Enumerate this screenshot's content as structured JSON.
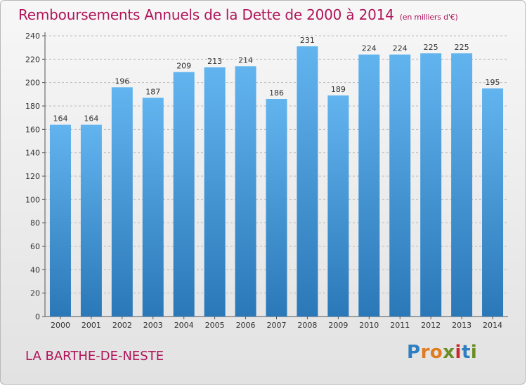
{
  "chart_data": {
    "type": "bar",
    "title": "Remboursements Annuels de la Dette de 2000 à 2014",
    "subtitle": "(en milliers d'€)",
    "categories": [
      "2000",
      "2001",
      "2002",
      "2003",
      "2004",
      "2005",
      "2006",
      "2007",
      "2008",
      "2009",
      "2010",
      "2011",
      "2012",
      "2013",
      "2014"
    ],
    "values": [
      164,
      164,
      196,
      187,
      209,
      213,
      214,
      186,
      231,
      189,
      224,
      224,
      225,
      225,
      195
    ],
    "ylim": [
      0,
      240
    ],
    "yticks": [
      0,
      20,
      40,
      60,
      80,
      100,
      120,
      140,
      160,
      180,
      200,
      220,
      240
    ],
    "grid": true,
    "xlabel": "",
    "ylabel": "",
    "bar_color": "#3a8fd4"
  },
  "footer": {
    "city": "LA BARTHE-DE-NESTE",
    "logo_letters": [
      {
        "ch": "P",
        "color": "#2d7fc1"
      },
      {
        "ch": "r",
        "color": "#e07b1f"
      },
      {
        "ch": "o",
        "color": "#e07b1f"
      },
      {
        "ch": "x",
        "color": "#6a8e23"
      },
      {
        "ch": "i",
        "color": "#c9282d"
      },
      {
        "ch": "t",
        "color": "#2d7fc1"
      },
      {
        "ch": "i",
        "color": "#6a8e23"
      }
    ]
  }
}
